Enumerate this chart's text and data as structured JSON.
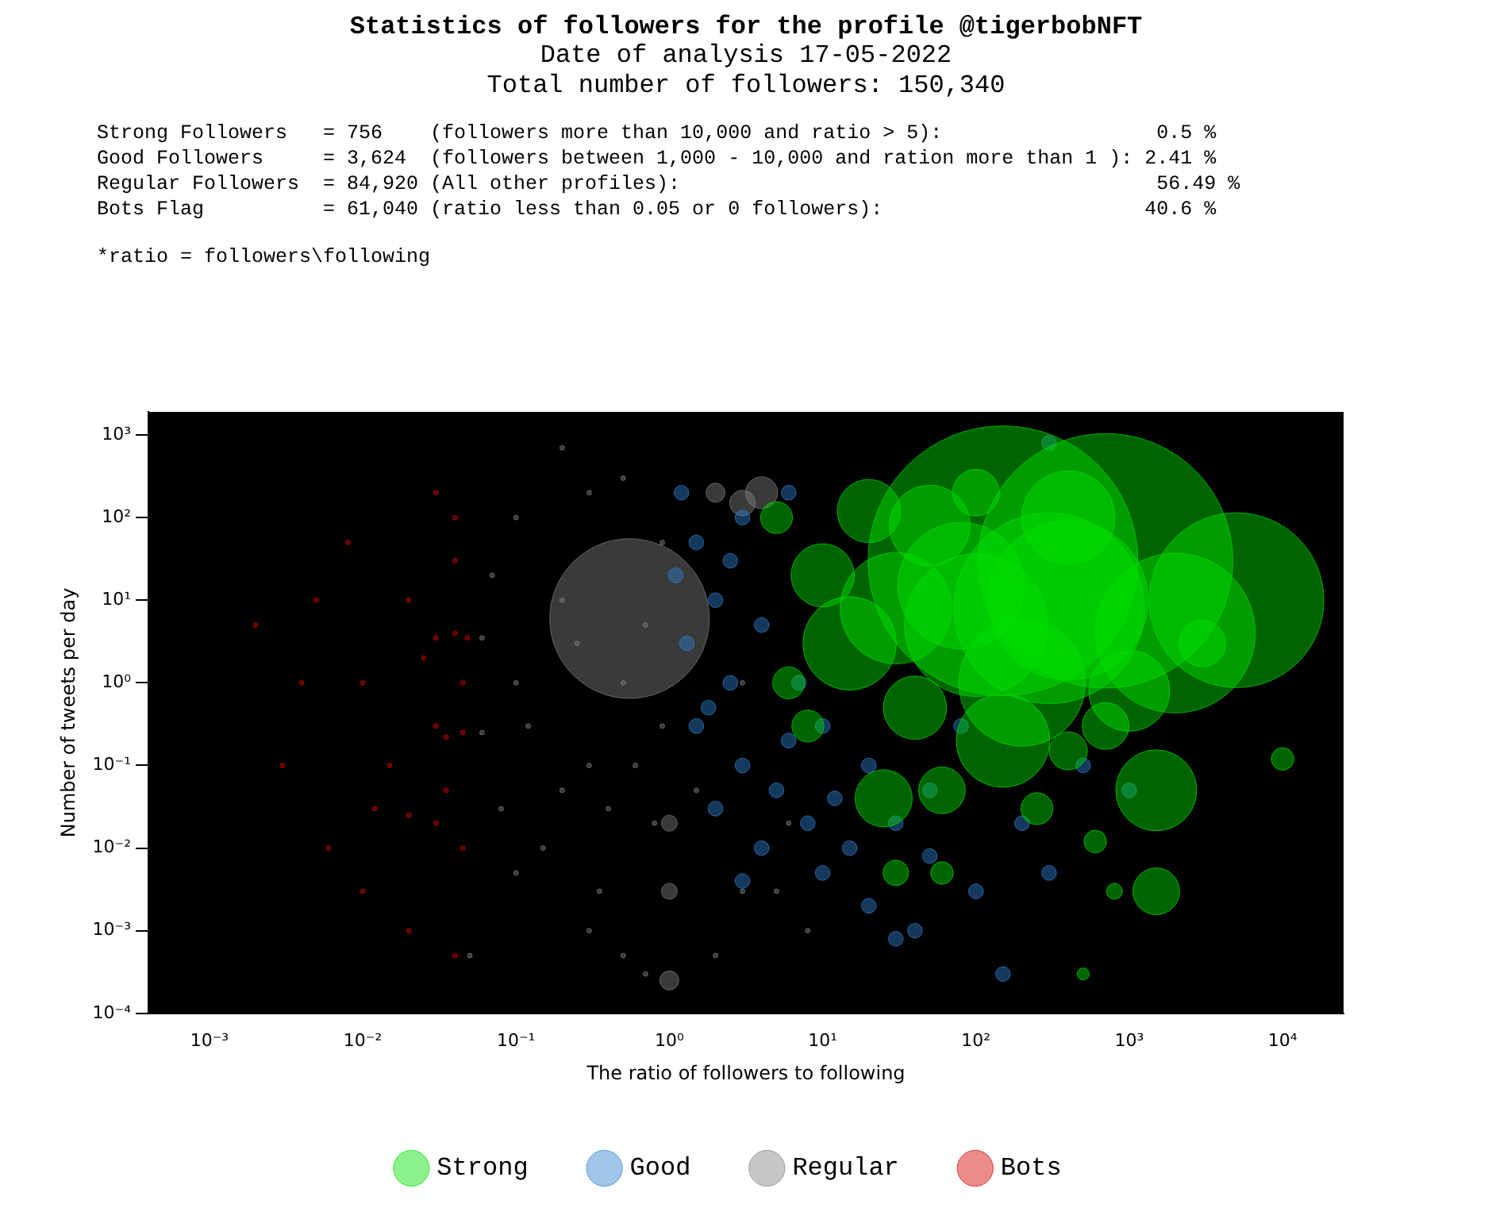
{
  "chart_data": {
    "type": "bubble",
    "title": "Statistics of followers for the profile @tigerbobNFT",
    "subtitle": "Date of analysis 17-05-2022\nTotal number of followers: 150,340",
    "annotations": [
      "Strong Followers   = 756    (followers more than 10,000 and ratio > 5):                  0.5 %",
      "Good Followers     = 3,624  (followers between 1,000 - 10,000 and ration more than 1 ): 2.41 %",
      "Regular Followers  = 84,920 (All other profiles):                                        56.49 %",
      "Bots Flag          = 61,040 (ratio less than 0.05 or 0 followers):                      40.6 %",
      "*ratio = followers\\following"
    ],
    "xlabel": "The ratio of followers to following",
    "ylabel": "Number of tweets per day",
    "log": "xy",
    "grid": false,
    "legend": "bottom",
    "marker": "circle",
    "xlim": [
      0.0004,
      25000
    ],
    "ylim": [
      0.0001,
      1900
    ],
    "xticks": [
      {
        "value": 0.001,
        "label": "10⁻³"
      },
      {
        "value": 0.01,
        "label": "10⁻²"
      },
      {
        "value": 0.1,
        "label": "10⁻¹"
      },
      {
        "value": 1,
        "label": "10⁰"
      },
      {
        "value": 10,
        "label": "10¹"
      },
      {
        "value": 100,
        "label": "10²"
      },
      {
        "value": 1000,
        "label": "10³"
      },
      {
        "value": 10000,
        "label": "10⁴"
      }
    ],
    "yticks": [
      {
        "value": 0.0001,
        "label": "10⁻⁴"
      },
      {
        "value": 0.001,
        "label": "10⁻³"
      },
      {
        "value": 0.01,
        "label": "10⁻²"
      },
      {
        "value": 0.1,
        "label": "10⁻¹"
      },
      {
        "value": 1,
        "label": "10⁰"
      },
      {
        "value": 10,
        "label": "10¹"
      },
      {
        "value": 100,
        "label": "10²"
      },
      {
        "value": 1000,
        "label": "10³"
      }
    ],
    "series": [
      {
        "name": "Strong",
        "color": "#00e000",
        "x": [
          150,
          700,
          2000,
          5000,
          300,
          100,
          30,
          50,
          20,
          200,
          150,
          1500,
          1500,
          10000,
          400,
          60,
          25,
          30,
          60,
          8,
          15,
          10,
          400,
          3000,
          700,
          600,
          800,
          250,
          500,
          6,
          40,
          5,
          100,
          1000,
          80,
          400
        ],
        "values": [
          30,
          30,
          4,
          10,
          8,
          5,
          8,
          80,
          120,
          1,
          0.2,
          0.05,
          0.003,
          0.12,
          0.15,
          0.05,
          0.04,
          0.005,
          0.005,
          0.3,
          3,
          20,
          100,
          3,
          0.3,
          0.012,
          0.003,
          0.03,
          0.0003,
          1,
          0.5,
          100,
          200,
          0.8,
          15,
          10
        ],
        "sizes": [
          1,
          0.89,
          0.35,
          0.42,
          0.5,
          0.28,
          0.17,
          0.09,
          0.055,
          0.22,
          0.12,
          0.09,
          0.03,
          0.007,
          0.02,
          0.03,
          0.045,
          0.009,
          0.007,
          0.014,
          0.12,
          0.055,
          0.12,
          0.03,
          0.03,
          0.007,
          0.0035,
          0.014,
          0.002,
          0.014,
          0.055,
          0.014,
          0.03,
          0.09,
          0.22,
          0.35
        ]
      },
      {
        "name": "Good",
        "color": "#2f7fcf",
        "x": [
          1.2,
          1.5,
          2,
          1.3,
          2.5,
          1.5,
          3,
          5,
          2,
          4,
          8,
          10,
          20,
          15,
          30,
          50,
          100,
          150,
          300,
          3,
          6,
          1.1,
          4,
          7,
          10,
          20,
          50,
          200,
          500,
          30,
          40,
          3,
          1.8,
          2.5,
          6,
          12,
          80,
          300,
          1000
        ],
        "values": [
          200,
          50,
          10,
          3,
          1,
          0.3,
          0.1,
          0.05,
          0.03,
          0.01,
          0.02,
          0.005,
          0.002,
          0.01,
          0.02,
          0.008,
          0.003,
          0.0003,
          800,
          100,
          200,
          20,
          5,
          1,
          0.3,
          0.1,
          0.05,
          0.02,
          0.1,
          0.0008,
          0.001,
          0.004,
          0.5,
          30,
          0.2,
          0.04,
          0.3,
          0.005,
          0.05
        ],
        "sizes": [
          0.003,
          0.003,
          0.003,
          0.003,
          0.003,
          0.003,
          0.003,
          0.003,
          0.003,
          0.003,
          0.003,
          0.003,
          0.003,
          0.003,
          0.003,
          0.003,
          0.003,
          0.003,
          0.003,
          0.003,
          0.003,
          0.003,
          0.003,
          0.003,
          0.003,
          0.003,
          0.003,
          0.003,
          0.003,
          0.003,
          0.003,
          0.003,
          0.003,
          0.003,
          0.003,
          0.003,
          0.003,
          0.003,
          0.003
        ]
      },
      {
        "name": "Regular",
        "color": "#808080",
        "x": [
          0.06,
          0.06,
          0.1,
          0.2,
          0.3,
          0.5,
          0.7,
          0.15,
          0.3,
          0.5,
          0.8,
          0.1,
          0.3,
          0.2,
          0.5,
          0.08,
          0.4,
          0.9,
          0.9,
          1,
          1,
          1,
          2,
          3,
          5,
          8,
          3,
          4,
          2,
          0.55,
          0.07,
          0.12,
          0.25,
          0.6,
          0.2,
          0.35,
          0.7,
          0.05,
          0.1,
          1.5,
          3,
          6
        ],
        "values": [
          3.5,
          0.25,
          1,
          10,
          0.1,
          1,
          5,
          0.01,
          0.001,
          0.0005,
          0.02,
          100,
          200,
          700,
          300,
          0.03,
          0.03,
          0.3,
          50,
          0.00025,
          0.003,
          0.02,
          0.0005,
          0.003,
          0.003,
          0.001,
          150,
          200,
          200,
          6,
          20,
          0.3,
          3,
          0.1,
          0.05,
          0.003,
          0.0003,
          0.0005,
          0.005,
          0.05,
          1,
          0.02
        ],
        "sizes": [
          0.0003,
          0.0003,
          0.0003,
          0.0003,
          0.0003,
          0.0003,
          0.0003,
          0.0003,
          0.0003,
          0.0003,
          0.0003,
          0.0003,
          0.0003,
          0.0003,
          0.0003,
          0.0003,
          0.0003,
          0.0003,
          0.0003,
          0.005,
          0.0035,
          0.0035,
          0.0003,
          0.0003,
          0.0003,
          0.0003,
          0.009,
          0.014,
          0.005,
          0.35,
          0.0003,
          0.0003,
          0.0003,
          0.0003,
          0.0003,
          0.0003,
          0.0003,
          0.0003,
          0.0003,
          0.0003,
          0.0003,
          0.0003
        ]
      },
      {
        "name": "Bots",
        "color": "#d00000",
        "x": [
          0.048,
          0.04,
          0.03,
          0.045,
          0.035,
          0.02,
          0.03,
          0.01,
          0.02,
          0.04,
          0.03,
          0.008,
          0.005,
          0.004,
          0.003,
          0.006,
          0.01,
          0.02,
          0.04,
          0.045,
          0.03,
          0.015,
          0.025,
          0.04,
          0.012,
          0.002,
          0.045,
          0.035
        ],
        "values": [
          3.5,
          4,
          3.5,
          0.25,
          0.22,
          0.025,
          0.02,
          1,
          10,
          100,
          200,
          50,
          10,
          1,
          0.1,
          0.01,
          0.003,
          0.001,
          0.0005,
          0.01,
          0.3,
          0.1,
          2,
          30,
          0.03,
          5,
          1,
          0.05
        ],
        "sizes": [
          0.0003,
          0.0003,
          0.0003,
          0.0003,
          0.0003,
          0.0003,
          0.0003,
          0.0003,
          0.0003,
          0.0003,
          0.0003,
          0.0003,
          0.0003,
          0.0003,
          0.0003,
          0.0003,
          0.0003,
          0.0003,
          0.0003,
          0.0003,
          0.0003,
          0.0003,
          0.0003,
          0.0003,
          0.0003,
          0.0003,
          0.0003,
          0.0003
        ]
      }
    ]
  }
}
